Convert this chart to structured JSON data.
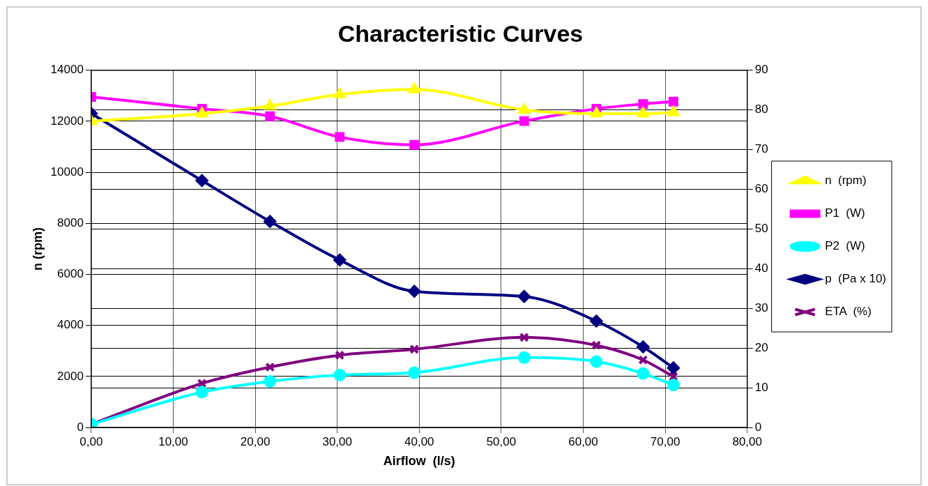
{
  "chart_data": {
    "type": "line",
    "title": "Characteristic Curves",
    "xlabel": "Airflow  (l/s)",
    "ylabel": "n (rpm)",
    "xlim": [
      0,
      80
    ],
    "xticks": [
      {
        "value": 0,
        "label": "0,00"
      },
      {
        "value": 10,
        "label": "10,00"
      },
      {
        "value": 20,
        "label": "20,00"
      },
      {
        "value": 30,
        "label": "30,00"
      },
      {
        "value": 40,
        "label": "40,00"
      },
      {
        "value": 50,
        "label": "50,00"
      },
      {
        "value": 60,
        "label": "60,00"
      },
      {
        "value": 70,
        "label": "70,00"
      },
      {
        "value": 80,
        "label": "80,00"
      }
    ],
    "ylim": [
      0,
      14000
    ],
    "yticks": [
      0,
      2000,
      4000,
      6000,
      8000,
      10000,
      12000,
      14000
    ],
    "y2lim": [
      0,
      90
    ],
    "y2ticks": [
      0,
      10,
      20,
      30,
      40,
      50,
      60,
      70,
      80,
      90
    ],
    "x": [
      0,
      13.5,
      21.8,
      30.3,
      39.4,
      52.8,
      61.6,
      67.3,
      71
    ],
    "grid": true,
    "legend": "right",
    "line_style": "solid",
    "series": [
      {
        "name": "n  (rpm)",
        "color": "#ffff00",
        "marker": "triangle",
        "values": [
          12000,
          12300,
          12600,
          13050,
          13250,
          12450,
          12300,
          12300,
          12350
        ]
      },
      {
        "name": "P1  (W)",
        "color": "#ff00ff",
        "marker": "square",
        "axis": "y2",
        "values": [
          83.3,
          80.3,
          78.4,
          73.2,
          71.2,
          77.2,
          80.3,
          81.5,
          82.1
        ]
      },
      {
        "name": "P2  (W)",
        "color": "#00ffff",
        "marker": "circle",
        "axis": "y2",
        "values": [
          0.8,
          8.9,
          11.6,
          13.2,
          13.8,
          17.6,
          16.6,
          13.6,
          10.7
        ]
      },
      {
        "name": "p  (Pa x 10)",
        "color": "#000080",
        "marker": "diamond",
        "axis": "y2",
        "values": [
          79.1,
          62.2,
          51.9,
          42.2,
          34.3,
          33.0,
          26.8,
          20.3,
          15.0
        ]
      },
      {
        "name": "ETA  (%)",
        "color": "#800080",
        "marker": "cross",
        "axis": "y2",
        "values": [
          0.8,
          11.1,
          15.2,
          18.2,
          19.7,
          22.7,
          20.7,
          17.0,
          12.8
        ]
      }
    ]
  }
}
